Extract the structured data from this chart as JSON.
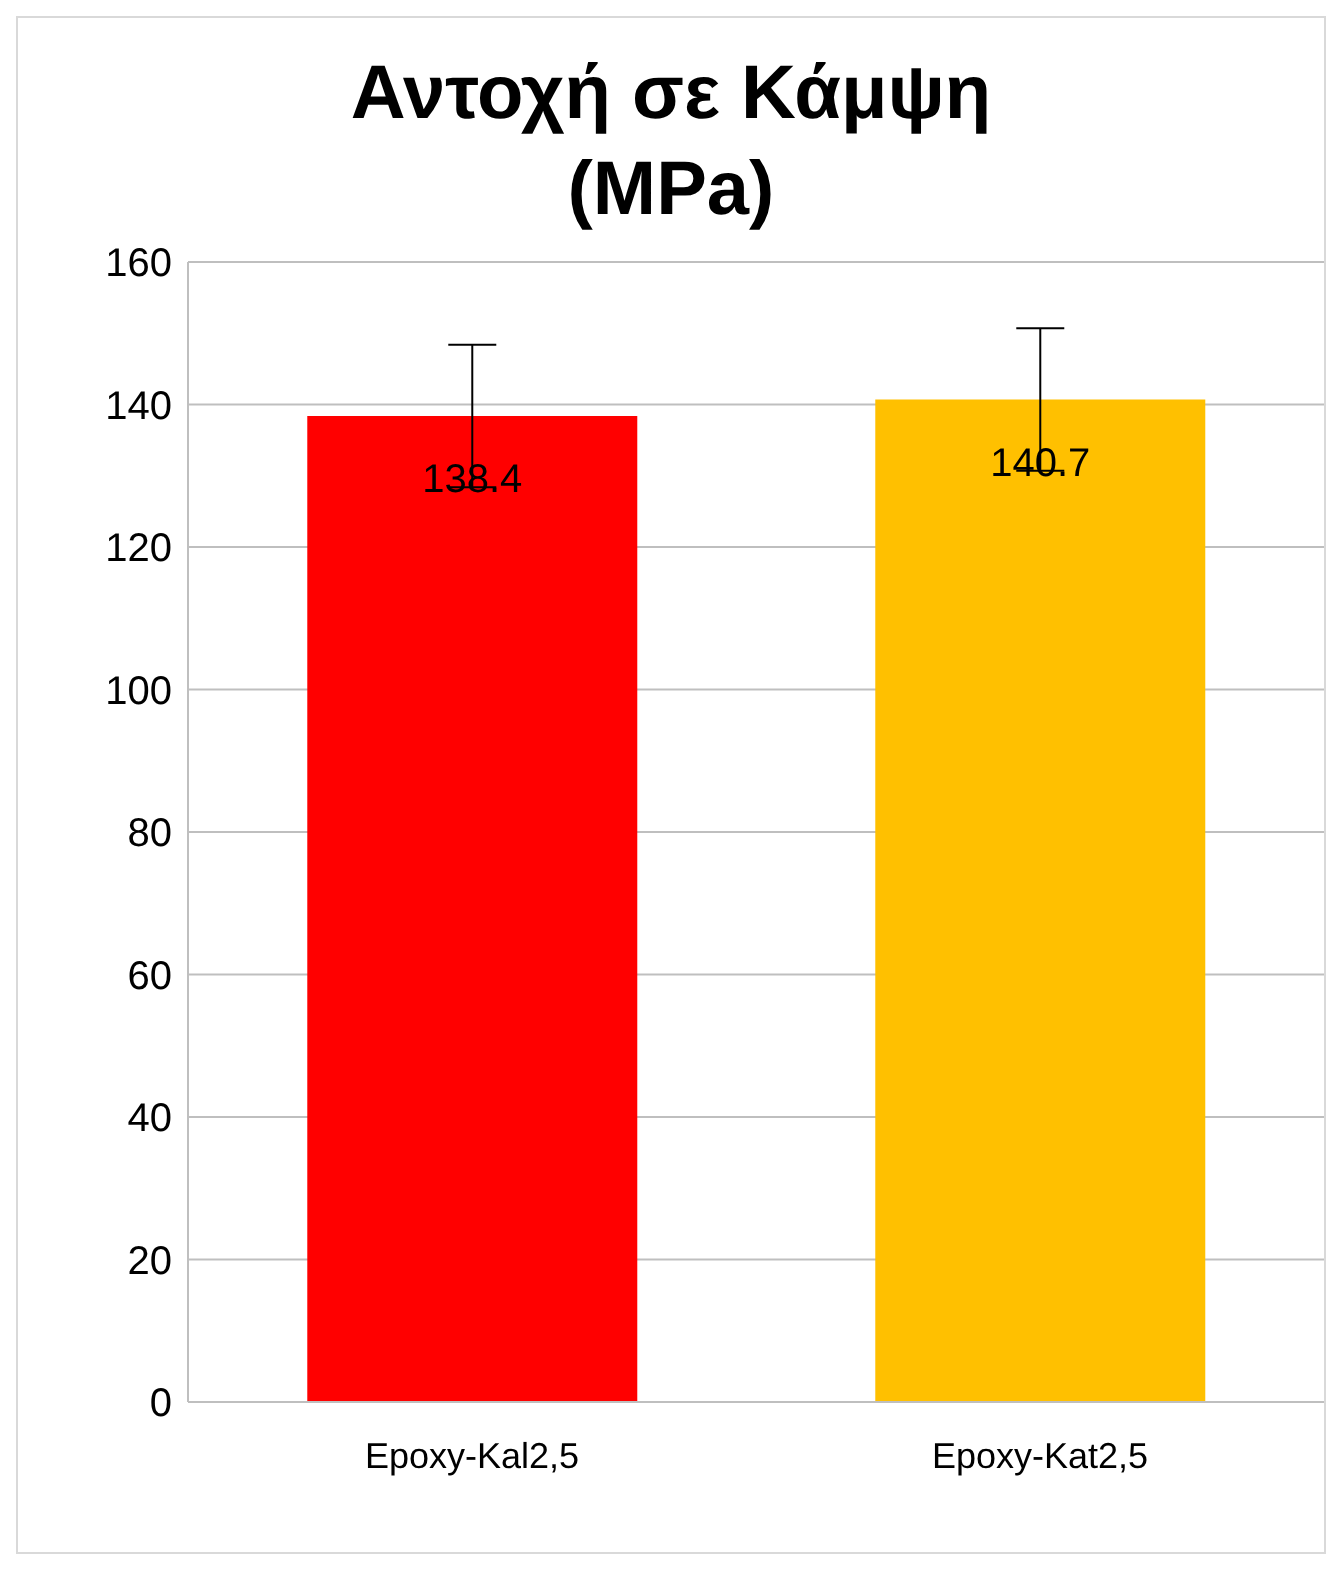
{
  "chart_data": {
    "type": "bar",
    "title": "Αντοχή σε Κάμψη (MPa)",
    "categories": [
      "Epoxy-Kal2,5",
      "Epoxy-Kat2,5"
    ],
    "values": [
      138.4,
      140.7
    ],
    "colors": [
      "#ff0000",
      "#ffc000"
    ],
    "errors": [
      10,
      10
    ],
    "data_labels": true,
    "ylim": [
      0,
      160
    ],
    "yticks": [
      0,
      20,
      40,
      60,
      80,
      100,
      120,
      140,
      160
    ],
    "grid": "y"
  }
}
